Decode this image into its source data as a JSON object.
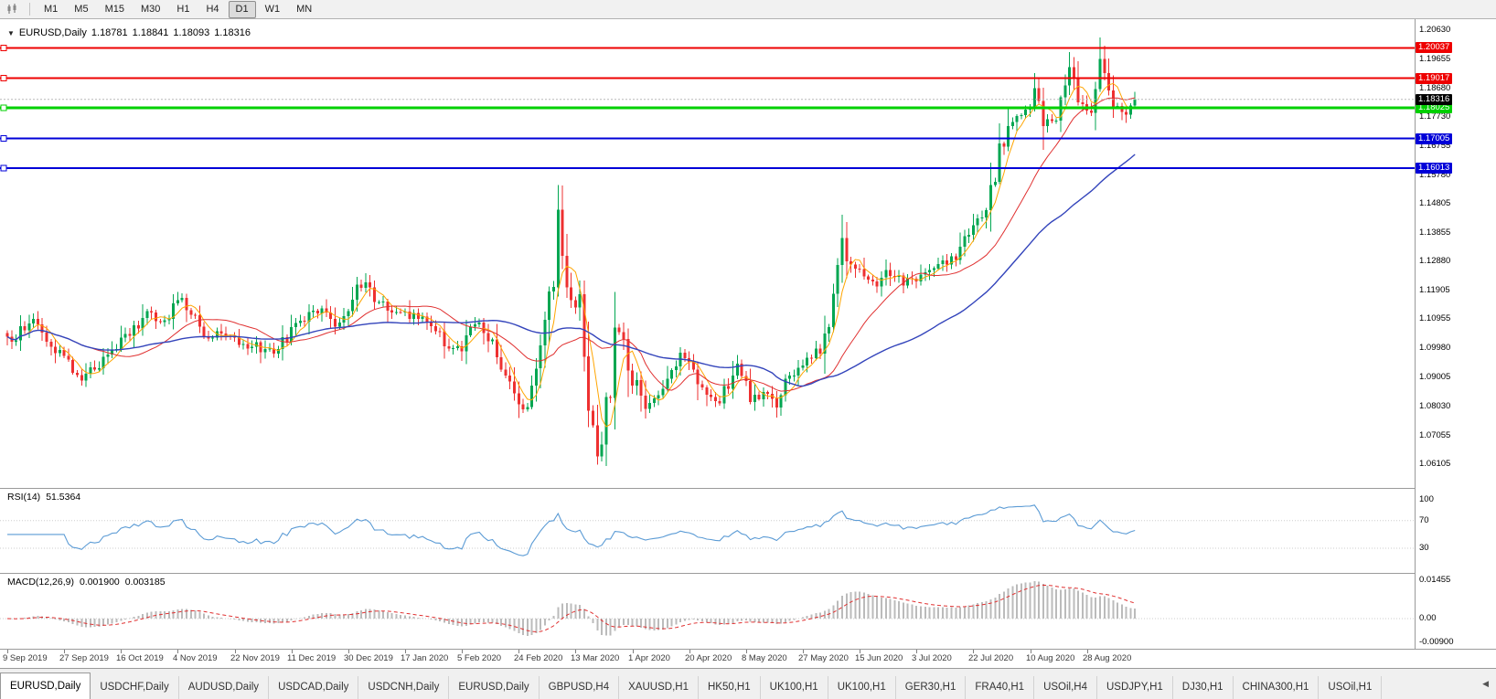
{
  "icons": {
    "collapse_arrow": "▼",
    "tab_scroll_left": "◀"
  },
  "toolbar": {
    "timeframes": [
      {
        "label": "M1",
        "active": false
      },
      {
        "label": "M5",
        "active": false
      },
      {
        "label": "M15",
        "active": false
      },
      {
        "label": "M30",
        "active": false
      },
      {
        "label": "H1",
        "active": false
      },
      {
        "label": "H4",
        "active": false
      },
      {
        "label": "D1",
        "active": true
      },
      {
        "label": "W1",
        "active": false
      },
      {
        "label": "MN",
        "active": false
      }
    ]
  },
  "chart": {
    "symbol": "EURUSD,Daily",
    "ohlc": {
      "open": "1.18781",
      "high": "1.18841",
      "low": "1.18093",
      "close": "1.18316"
    }
  },
  "chart_data": {
    "type": "candlestick",
    "symbol": "EURUSD",
    "timeframe": "Daily",
    "candle_count": 259,
    "price_range": {
      "top": 1.2063,
      "bottom": 1.06105
    },
    "y_axis_labels": [
      "1.20630",
      "1.19655",
      "1.18680",
      "1.17730",
      "1.16755",
      "1.15780",
      "1.14805",
      "1.13855",
      "1.12880",
      "1.11905",
      "1.10955",
      "1.09980",
      "1.09005",
      "1.08030",
      "1.07055",
      "1.06105"
    ],
    "x_axis_labels": [
      "9 Sep 2019",
      "27 Sep 2019",
      "16 Oct 2019",
      "4 Nov 2019",
      "22 Nov 2019",
      "11 Dec 2019",
      "30 Dec 2019",
      "17 Jan 2020",
      "5 Feb 2020",
      "24 Feb 2020",
      "13 Mar 2020",
      "1 Apr 2020",
      "20 Apr 2020",
      "8 May 2020",
      "27 May 2020",
      "15 Jun 2020",
      "3 Jul 2020",
      "22 Jul 2020",
      "10 Aug 2020",
      "28 Aug 2020"
    ],
    "x_tick_indices": [
      0,
      13,
      26,
      39,
      52,
      65,
      78,
      91,
      104,
      117,
      130,
      143,
      156,
      169,
      182,
      195,
      208,
      221,
      234,
      247
    ],
    "horizontal_lines": [
      {
        "value": "1.20037",
        "price": 1.20037,
        "color": "#EE0000",
        "width": 2
      },
      {
        "value": "1.19017",
        "price": 1.19017,
        "color": "#EE0000",
        "width": 2
      },
      {
        "value": "1.18025",
        "price": 1.18025,
        "color": "#00D000",
        "width": 3
      },
      {
        "value": "1.17005",
        "price": 1.17005,
        "color": "#0000D8",
        "width": 2
      },
      {
        "value": "1.16013",
        "price": 1.16013,
        "color": "#0000D8",
        "width": 2
      }
    ],
    "current_price": {
      "value": "1.18316",
      "price": 1.18316,
      "color": "#000000"
    },
    "moving_averages": [
      {
        "period": 5,
        "color": "#FFA500"
      },
      {
        "period": 20,
        "color": "#E03030"
      },
      {
        "period": 50,
        "color": "#3344BB"
      }
    ],
    "rsi": {
      "label": "RSI(14)",
      "value": "51.5364",
      "period": 14,
      "color": "#5B9BD5",
      "levels": [
        {
          "label": "100",
          "value": 100
        },
        {
          "label": "70",
          "value": 70
        },
        {
          "label": "30",
          "value": 30
        }
      ]
    },
    "macd": {
      "label": "MACD(12,26,9)",
      "macd_value": "0.001900",
      "signal_value": "0.003185",
      "bar_color": "#BBBBBB",
      "signal_color": "#E03030",
      "axis_labels": [
        {
          "label": "0.01455",
          "value": 0.01455
        },
        {
          "label": "0.00",
          "value": 0
        },
        {
          "label": "-0.00900",
          "value": -0.009
        }
      ]
    },
    "price_anchors": [
      [
        0,
        1.104
      ],
      [
        2,
        1.1025
      ],
      [
        3,
        1.106
      ],
      [
        5,
        1.107
      ],
      [
        6,
        1.1085
      ],
      [
        8,
        1.106
      ],
      [
        9,
        1.104
      ],
      [
        11,
        1.1
      ],
      [
        12,
        1.099
      ],
      [
        14,
        1.095
      ],
      [
        16,
        1.0915
      ],
      [
        17,
        1.0895
      ],
      [
        19,
        1.0925
      ],
      [
        21,
        1.095
      ],
      [
        22,
        1.0965
      ],
      [
        24,
        1.0985
      ],
      [
        26,
        1.102
      ],
      [
        28,
        1.106
      ],
      [
        30,
        1.108
      ],
      [
        32,
        1.112
      ],
      [
        34,
        1.11
      ],
      [
        36,
        1.1095
      ],
      [
        38,
        1.113
      ],
      [
        40,
        1.116
      ],
      [
        42,
        1.1115
      ],
      [
        44,
        1.106
      ],
      [
        45,
        1.103
      ],
      [
        47,
        1.104
      ],
      [
        49,
        1.105
      ],
      [
        51,
        1.1035
      ],
      [
        53,
        1.1015
      ],
      [
        55,
        1.101
      ],
      [
        57,
        1.1008
      ],
      [
        59,
        1.099
      ],
      [
        60,
        1.0985
      ],
      [
        62,
        1.1005
      ],
      [
        64,
        1.104
      ],
      [
        66,
        1.107
      ],
      [
        68,
        1.109
      ],
      [
        70,
        1.1115
      ],
      [
        72,
        1.1125
      ],
      [
        73,
        1.113
      ],
      [
        75,
        1.1085
      ],
      [
        77,
        1.1095
      ],
      [
        79,
        1.114
      ],
      [
        80,
        1.1195
      ],
      [
        82,
        1.121
      ],
      [
        84,
        1.1175
      ],
      [
        86,
        1.114
      ],
      [
        88,
        1.112
      ],
      [
        90,
        1.113
      ],
      [
        92,
        1.111
      ],
      [
        94,
        1.1095
      ],
      [
        96,
        1.1085
      ],
      [
        98,
        1.106
      ],
      [
        100,
        1.102
      ],
      [
        102,
        1.1005
      ],
      [
        104,
        1.1
      ],
      [
        105,
        1.104
      ],
      [
        107,
        1.1085
      ],
      [
        108,
        1.1095
      ],
      [
        110,
        1.104
      ],
      [
        112,
        1.0975
      ],
      [
        114,
        1.092
      ],
      [
        116,
        1.0845
      ],
      [
        118,
        1.079
      ],
      [
        119,
        1.0805
      ],
      [
        121,
        1.0885
      ],
      [
        123,
        1.1035
      ],
      [
        124,
        1.112
      ],
      [
        125,
        1.125
      ],
      [
        126,
        1.144
      ],
      [
        127,
        1.133
      ],
      [
        128,
        1.125
      ],
      [
        129,
        1.116
      ],
      [
        130,
        1.1105
      ],
      [
        131,
        1.116
      ],
      [
        132,
        1.099
      ],
      [
        133,
        1.087
      ],
      [
        134,
        1.072
      ],
      [
        135,
        1.0645
      ],
      [
        136,
        1.07
      ],
      [
        137,
        1.077
      ],
      [
        138,
        1.09
      ],
      [
        139,
        1.11
      ],
      [
        140,
        1.106
      ],
      [
        141,
        1.099
      ],
      [
        142,
        1.094
      ],
      [
        144,
        1.086
      ],
      [
        146,
        1.08
      ],
      [
        148,
        1.083
      ],
      [
        150,
        1.089
      ],
      [
        152,
        1.093
      ],
      [
        154,
        1.0975
      ],
      [
        156,
        1.093
      ],
      [
        158,
        1.0875
      ],
      [
        160,
        1.084
      ],
      [
        161,
        1.082
      ],
      [
        163,
        1.083
      ],
      [
        165,
        1.087
      ],
      [
        167,
        1.095
      ],
      [
        168,
        1.092
      ],
      [
        170,
        1.084
      ],
      [
        172,
        1.0835
      ],
      [
        174,
        1.0845
      ],
      [
        176,
        1.0815
      ],
      [
        178,
        1.087
      ],
      [
        180,
        1.092
      ],
      [
        182,
        1.095
      ],
      [
        184,
        1.0975
      ],
      [
        186,
        1.099
      ],
      [
        188,
        1.109
      ],
      [
        190,
        1.125
      ],
      [
        191,
        1.137
      ],
      [
        192,
        1.13
      ],
      [
        193,
        1.126
      ],
      [
        195,
        1.1255
      ],
      [
        197,
        1.123
      ],
      [
        199,
        1.121
      ],
      [
        201,
        1.125
      ],
      [
        203,
        1.124
      ],
      [
        205,
        1.122
      ],
      [
        207,
        1.123
      ],
      [
        209,
        1.124
      ],
      [
        211,
        1.125
      ],
      [
        213,
        1.127
      ],
      [
        215,
        1.1285
      ],
      [
        217,
        1.13
      ],
      [
        219,
        1.138
      ],
      [
        221,
        1.142
      ],
      [
        223,
        1.145
      ],
      [
        225,
        1.152
      ],
      [
        227,
        1.165
      ],
      [
        229,
        1.1715
      ],
      [
        231,
        1.1765
      ],
      [
        233,
        1.178
      ],
      [
        235,
        1.186
      ],
      [
        237,
        1.177
      ],
      [
        239,
        1.1745
      ],
      [
        241,
        1.181
      ],
      [
        243,
        1.1925
      ],
      [
        244,
        1.189
      ],
      [
        245,
        1.185
      ],
      [
        246,
        1.182
      ],
      [
        247,
        1.179
      ],
      [
        248,
        1.181
      ],
      [
        249,
        1.187
      ],
      [
        250,
        1.196
      ],
      [
        251,
        1.1905
      ],
      [
        252,
        1.186
      ],
      [
        253,
        1.183
      ],
      [
        254,
        1.18
      ],
      [
        255,
        1.1785
      ],
      [
        256,
        1.1775
      ],
      [
        257,
        1.18
      ],
      [
        258,
        1.1832
      ]
    ],
    "spikes": [
      {
        "index": 126,
        "high": 1.1495
      },
      {
        "index": 135,
        "low": 1.0636
      },
      {
        "index": 191,
        "high": 1.1422
      },
      {
        "index": 243,
        "high": 1.1966
      },
      {
        "index": 250,
        "high": 1.2011
      },
      {
        "index": 256,
        "low": 1.1753
      }
    ]
  },
  "tabs": {
    "items": [
      {
        "label": "EURUSD,Daily",
        "active": true
      },
      {
        "label": "USDCHF,Daily",
        "active": false
      },
      {
        "label": "AUDUSD,Daily",
        "active": false
      },
      {
        "label": "USDCAD,Daily",
        "active": false
      },
      {
        "label": "USDCNH,Daily",
        "active": false
      },
      {
        "label": "EURUSD,Daily",
        "active": false
      },
      {
        "label": "GBPUSD,H4",
        "active": false
      },
      {
        "label": "XAUUSD,H1",
        "active": false
      },
      {
        "label": "HK50,H1",
        "active": false
      },
      {
        "label": "UK100,H1",
        "active": false
      },
      {
        "label": "UK100,H1",
        "active": false
      },
      {
        "label": "GER30,H1",
        "active": false
      },
      {
        "label": "FRA40,H1",
        "active": false
      },
      {
        "label": "USOil,H4",
        "active": false
      },
      {
        "label": "USDJPY,H1",
        "active": false
      },
      {
        "label": "DJ30,H1",
        "active": false
      },
      {
        "label": "CHINA300,H1",
        "active": false
      },
      {
        "label": "USOil,H1",
        "active": false
      }
    ]
  },
  "colors": {
    "bull": "#00A651",
    "bear": "#EE3030"
  }
}
